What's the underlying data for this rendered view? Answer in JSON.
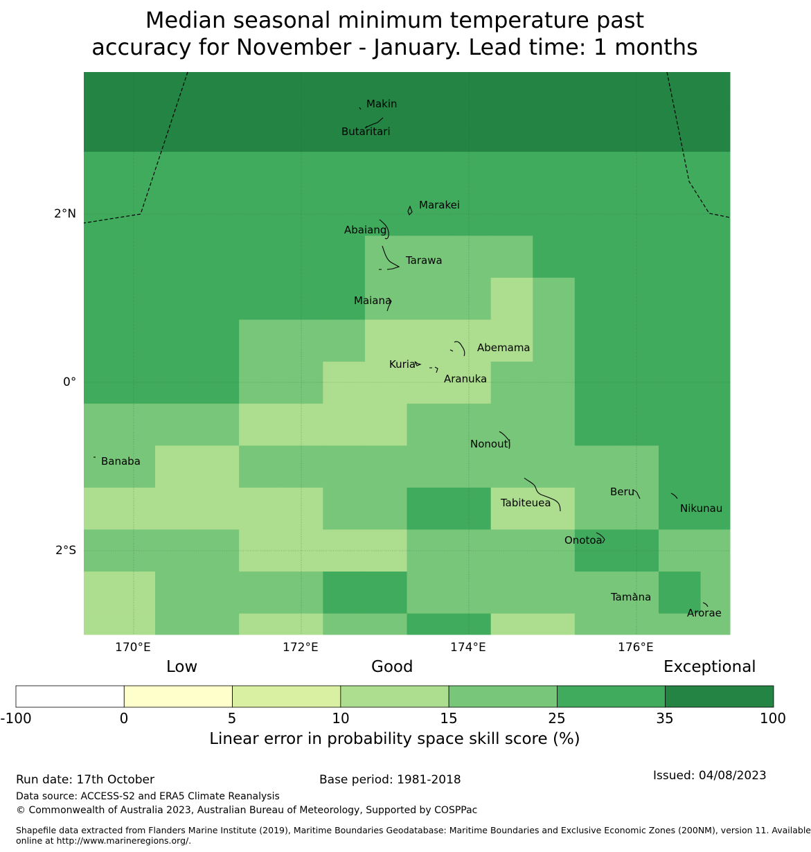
{
  "title": {
    "line1": "Median seasonal minimum temperature past",
    "line2": "accuracy for November - January. Lead time: 1 months"
  },
  "colors": {
    "c100": "#238443",
    "c35": "#41ab5d",
    "c25": "#78c679",
    "c15": "#addd8e",
    "c10": "#d9f0a3",
    "c5": "#ffffcc",
    "c0": "#ffffff"
  },
  "map": {
    "lon_range": [
      169.4,
      177.1
    ],
    "lat_range": [
      -3.0,
      3.7
    ],
    "cell_size_deg": 0.5,
    "grid": [
      [
        "c100",
        "c100",
        "c100",
        "c100",
        "c100",
        "c100",
        "c100",
        "c100",
        "c100",
        "c100",
        "c100",
        "c100",
        "c100",
        "c100",
        "c100",
        "c100"
      ],
      [
        "c100",
        "c100",
        "c100",
        "c100",
        "c100",
        "c100",
        "c100",
        "c100",
        "c100",
        "c100",
        "c100",
        "c100",
        "c100",
        "c100",
        "c100",
        "c100"
      ],
      [
        "c35",
        "c35",
        "c35",
        "c35",
        "c35",
        "c35",
        "c35",
        "c35",
        "c35",
        "c35",
        "c35",
        "c35",
        "c35",
        "c35",
        "c35",
        "c35"
      ],
      [
        "c35",
        "c35",
        "c35",
        "c35",
        "c35",
        "c35",
        "c35",
        "c35",
        "c35",
        "c35",
        "c35",
        "c35",
        "c35",
        "c35",
        "c35",
        "c35"
      ],
      [
        "c35",
        "c35",
        "c35",
        "c35",
        "c35",
        "c35",
        "c35",
        "c25",
        "c25",
        "c25",
        "c25",
        "c35",
        "c35",
        "c35",
        "c35",
        "c35"
      ],
      [
        "c35",
        "c35",
        "c35",
        "c35",
        "c35",
        "c35",
        "c35",
        "c25",
        "c25",
        "c25",
        "c15",
        "c25",
        "c35",
        "c35",
        "c35",
        "c35"
      ],
      [
        "c35",
        "c35",
        "c35",
        "c35",
        "c25",
        "c25",
        "c25",
        "c15",
        "c15",
        "c15",
        "c15",
        "c25",
        "c35",
        "c35",
        "c35",
        "c35"
      ],
      [
        "c35",
        "c35",
        "c35",
        "c35",
        "c25",
        "c25",
        "c15",
        "c15",
        "c15",
        "c15",
        "c25",
        "c25",
        "c35",
        "c35",
        "c35",
        "c35"
      ],
      [
        "c25",
        "c25",
        "c25",
        "c25",
        "c15",
        "c15",
        "c15",
        "c15",
        "c25",
        "c25",
        "c25",
        "c25",
        "c35",
        "c35",
        "c35",
        "c35"
      ],
      [
        "c25",
        "c25",
        "c15",
        "c15",
        "c25",
        "c25",
        "c25",
        "c25",
        "c25",
        "c25",
        "c25",
        "c25",
        "c25",
        "c25",
        "c35",
        "c35"
      ],
      [
        "c15",
        "c15",
        "c15",
        "c15",
        "c15",
        "c15",
        "c25",
        "c25",
        "c35",
        "c35",
        "c15",
        "c15",
        "c25",
        "c25",
        "c35",
        "c35"
      ],
      [
        "c25",
        "c25",
        "c25",
        "c25",
        "c15",
        "c15",
        "c15",
        "c15",
        "c25",
        "c25",
        "c25",
        "c25",
        "c35",
        "c35",
        "c25",
        "c25"
      ],
      [
        "c15",
        "c15",
        "c25",
        "c25",
        "c25",
        "c25",
        "c35",
        "c35",
        "c25",
        "c25",
        "c25",
        "c25",
        "c25",
        "c25",
        "c35",
        "c25"
      ],
      [
        "c15",
        "c15",
        "c25",
        "c25",
        "c15",
        "c15",
        "c25",
        "c25",
        "c35",
        "c35",
        "c15",
        "c15",
        "c25",
        "c25",
        "c25",
        "c25"
      ]
    ],
    "x_ticks": [
      "170°E",
      "172°E",
      "174°E",
      "176°E"
    ],
    "y_ticks": [
      "2°N",
      "0°",
      "2°S"
    ],
    "islands": [
      {
        "name": "Makin",
        "lon": 173.0,
        "lat": 3.38
      },
      {
        "name": "Butaritari",
        "lon": 172.78,
        "lat": 3.07
      },
      {
        "name": "Marakei",
        "lon": 173.28,
        "lat": 2.0
      },
      {
        "name": "Abaiang",
        "lon": 172.93,
        "lat": 1.83
      },
      {
        "name": "Tarawa",
        "lon": 173.05,
        "lat": 1.43
      },
      {
        "name": "Maiana",
        "lon": 173.02,
        "lat": 0.93
      },
      {
        "name": "Abemama",
        "lon": 173.87,
        "lat": 0.4
      },
      {
        "name": "Kuria",
        "lon": 173.42,
        "lat": 0.23
      },
      {
        "name": "Aranuka",
        "lon": 173.62,
        "lat": 0.17
      },
      {
        "name": "Nonouti",
        "lon": 174.42,
        "lat": -0.65
      },
      {
        "name": "Banaba",
        "lon": 169.53,
        "lat": -0.87
      },
      {
        "name": "Tabiteuea",
        "lon": 174.9,
        "lat": -1.35
      },
      {
        "name": "Beru",
        "lon": 176.0,
        "lat": -1.33
      },
      {
        "name": "Nikunau",
        "lon": 176.45,
        "lat": -1.37
      },
      {
        "name": "Onotoa",
        "lon": 175.57,
        "lat": -1.82
      },
      {
        "name": "Tamana",
        "lon": 175.98,
        "lat": -2.5
      },
      {
        "name": "Arorae",
        "lon": 176.82,
        "lat": -2.63
      }
    ]
  },
  "colorbar": {
    "category_labels": [
      "Low",
      "Good",
      "Exceptional"
    ],
    "bins": [
      "c0",
      "c5",
      "c10",
      "c15",
      "c25",
      "c35",
      "c100"
    ],
    "ticks": [
      "-100",
      "0",
      "5",
      "10",
      "15",
      "25",
      "35",
      "100"
    ],
    "title": "Linear error in probability space skill score (%)"
  },
  "footer": {
    "run_date": "Run date: 17th October",
    "base_period": "Base period: 1981-2018",
    "issued": "Issued: 04/08/2023",
    "data_source": "Data source: ACCESS-S2 and ERA5 Climate Reanalysis",
    "copyright": "© Commonwealth of Australia 2023, Australian Bureau of Meteorology, Supported by COSPPac",
    "shapefile_line1": "Shapefile data extracted from Flanders Marine Institute (2019), Maritime Boundaries Geodatabase: Maritime Boundaries and Exclusive Economic Zones (200NM), version 11. Available",
    "shapefile_line2": "online at http://www.marineregions.org/."
  }
}
